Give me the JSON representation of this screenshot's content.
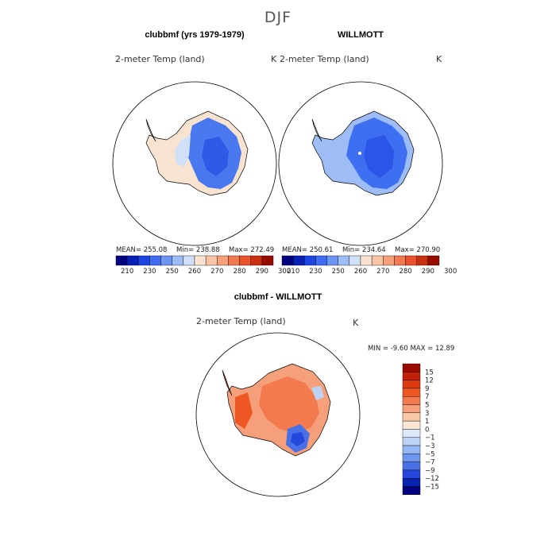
{
  "title": "DJF",
  "chart_data": [
    {
      "type": "heatmap",
      "panel_title": "clubbmf (yrs 1979-1979)",
      "variable": "2-meter Temp (land)",
      "units": "K",
      "stats": {
        "mean_label": "MEAN=",
        "mean": "255.08",
        "min_label": "Min=",
        "min": "238.88",
        "max_label": "Max=",
        "max": "272.49"
      },
      "colorbar": {
        "orientation": "horizontal",
        "ticks": [
          "210",
          "230",
          "250",
          "260",
          "270",
          "280",
          "290",
          "300"
        ]
      }
    },
    {
      "type": "heatmap",
      "panel_title": "WILLMOTT",
      "variable": "2-meter Temp (land)",
      "units": "K",
      "stats": {
        "mean_label": "MEAN=",
        "mean": "250.61",
        "min_label": "Min=",
        "min": "234.64",
        "max_label": "Max=",
        "max": "270.90"
      },
      "colorbar": {
        "orientation": "horizontal",
        "ticks": [
          "210",
          "230",
          "250",
          "260",
          "270",
          "280",
          "290",
          "300"
        ]
      }
    },
    {
      "type": "heatmap",
      "panel_title": "clubbmf - WILLMOTT",
      "variable": "2-meter Temp (land)",
      "units": "K",
      "stats": {
        "min_label": "MIN =",
        "min": "-9.60",
        "max_label": "MAX =",
        "max": "12.89"
      },
      "colorbar": {
        "orientation": "vertical",
        "ticks": [
          "15",
          "12",
          "9",
          "7",
          "5",
          "3",
          "1",
          "0",
          "−1",
          "−3",
          "−5",
          "−7",
          "−9",
          "−12",
          "−15"
        ]
      }
    }
  ],
  "colors": {
    "abs_scale": [
      "#000080",
      "#0a1fb4",
      "#1f45e0",
      "#3f6cf0",
      "#6c95f4",
      "#9ebcf6",
      "#cfe0f8",
      "#fbe3d2",
      "#f9c4a4",
      "#f6a07c",
      "#f27a52",
      "#e8522c",
      "#c9300f",
      "#950d00"
    ],
    "diff_scale": [
      "#9a0a00",
      "#c22008",
      "#dd3a10",
      "#ee5624",
      "#f27a4e",
      "#f5a07a",
      "#f8c8a6",
      "#fbe6d6",
      "#dde8f8",
      "#bcd3f6",
      "#94b6f2",
      "#6f95ee",
      "#4a70e8",
      "#2548dc",
      "#0a22b0",
      "#000080"
    ],
    "land_model": "#4a78ee",
    "land_obs": "#3d6ff0",
    "coast": "#000000"
  }
}
